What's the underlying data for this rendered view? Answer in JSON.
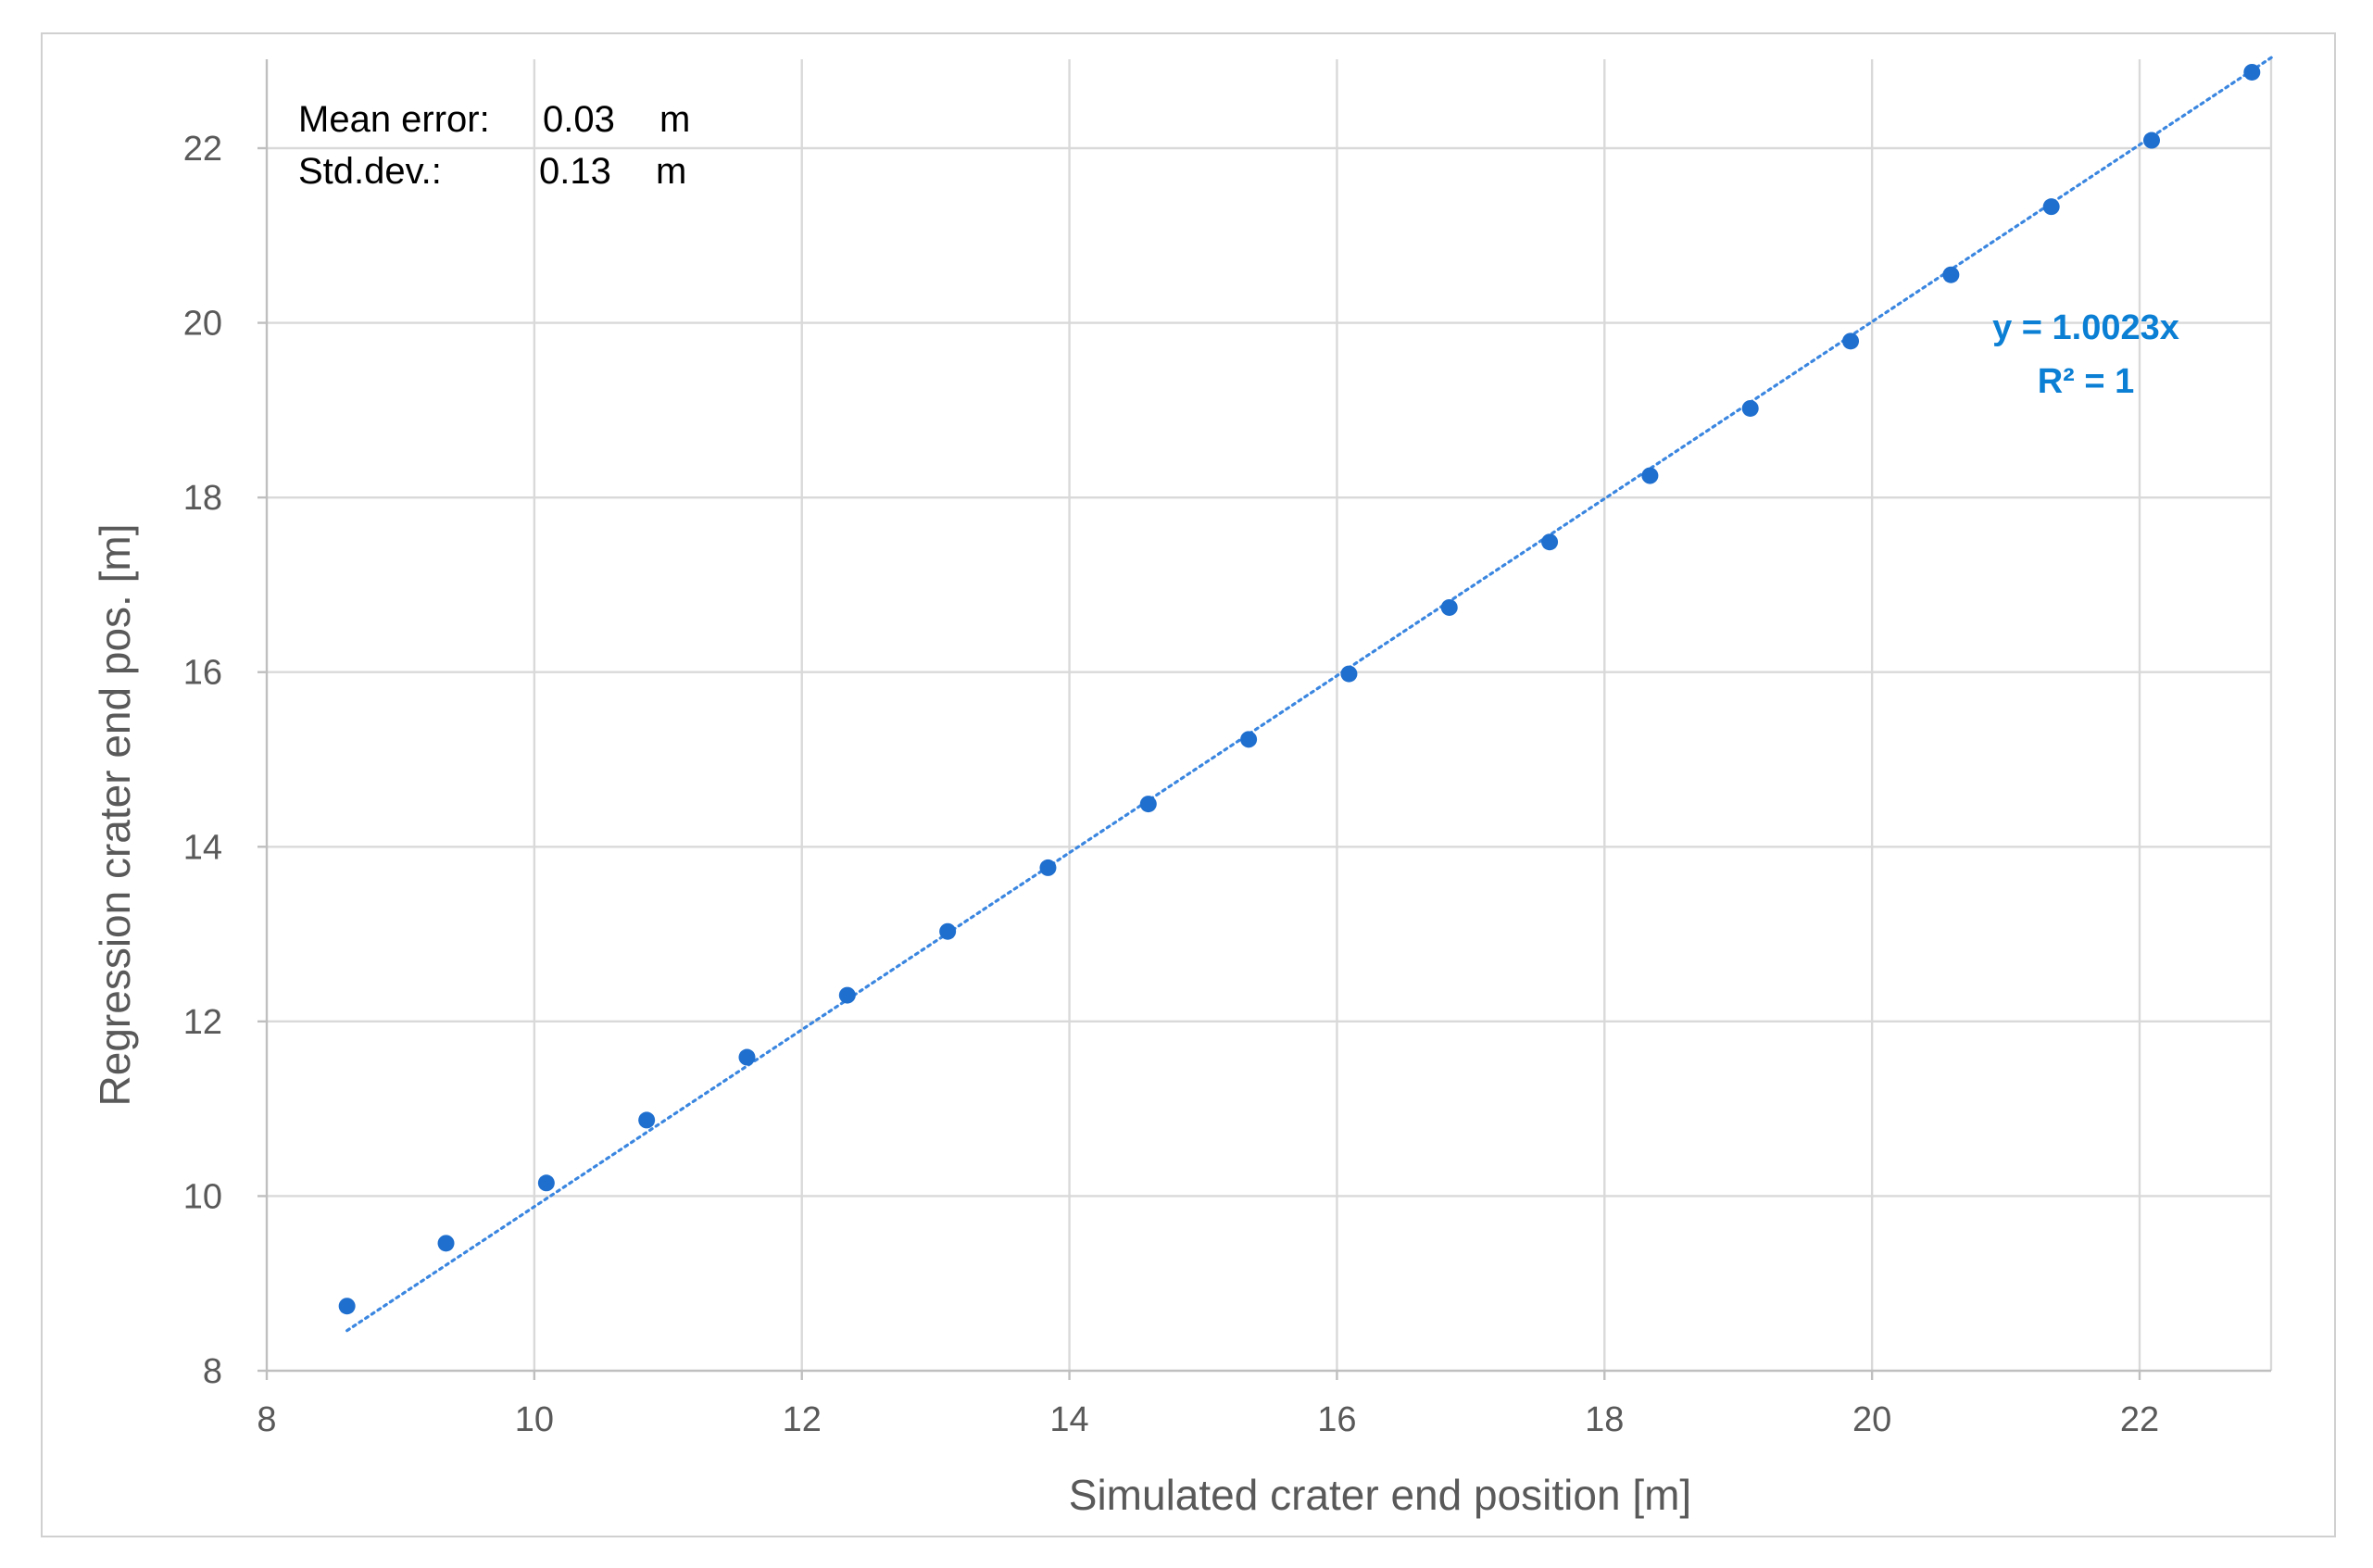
{
  "colors": {
    "series": "#1f6fcf",
    "trendline": "#3a86e0",
    "equation": "#0a7fd4"
  },
  "chart_data": {
    "type": "scatter",
    "xlabel": "Simulated crater end position [m]",
    "ylabel": "Regression crater end pos. [m]",
    "xlim": [
      8,
      23
    ],
    "ylim": [
      8,
      23
    ],
    "xticks": [
      "8",
      "10",
      "12",
      "14",
      "16",
      "18",
      "20",
      "22"
    ],
    "yticks": [
      "8",
      "10",
      "12",
      "14",
      "16",
      "18",
      "20",
      "22"
    ],
    "grid": true,
    "legend": "none",
    "series": [
      {
        "x": [
          8.6,
          9.34,
          10.09,
          10.84,
          11.59,
          12.34,
          13.09,
          13.84,
          14.59,
          15.34,
          16.09,
          16.84,
          17.59,
          18.34,
          19.09,
          19.84,
          20.59,
          21.34,
          22.09,
          22.84
        ],
        "y": [
          8.74,
          9.46,
          10.15,
          10.87,
          11.59,
          12.3,
          13.03,
          13.76,
          14.49,
          15.23,
          15.98,
          16.74,
          17.49,
          18.25,
          19.02,
          19.79,
          20.55,
          21.33,
          22.09,
          22.87
        ]
      }
    ],
    "trendline": {
      "type": "linear-through-origin",
      "slope": 1.0023,
      "x_range": [
        8.6,
        22.84
      ],
      "equation_label": "y = 1.0023x",
      "r2_label": "R² = 1"
    },
    "annotations": {
      "mean_error_label": "Mean error:",
      "mean_error_value": "0.03",
      "mean_error_unit": "m",
      "std_dev_label": "Std.dev.:",
      "std_dev_value": "0.13",
      "std_dev_unit": "m"
    }
  }
}
